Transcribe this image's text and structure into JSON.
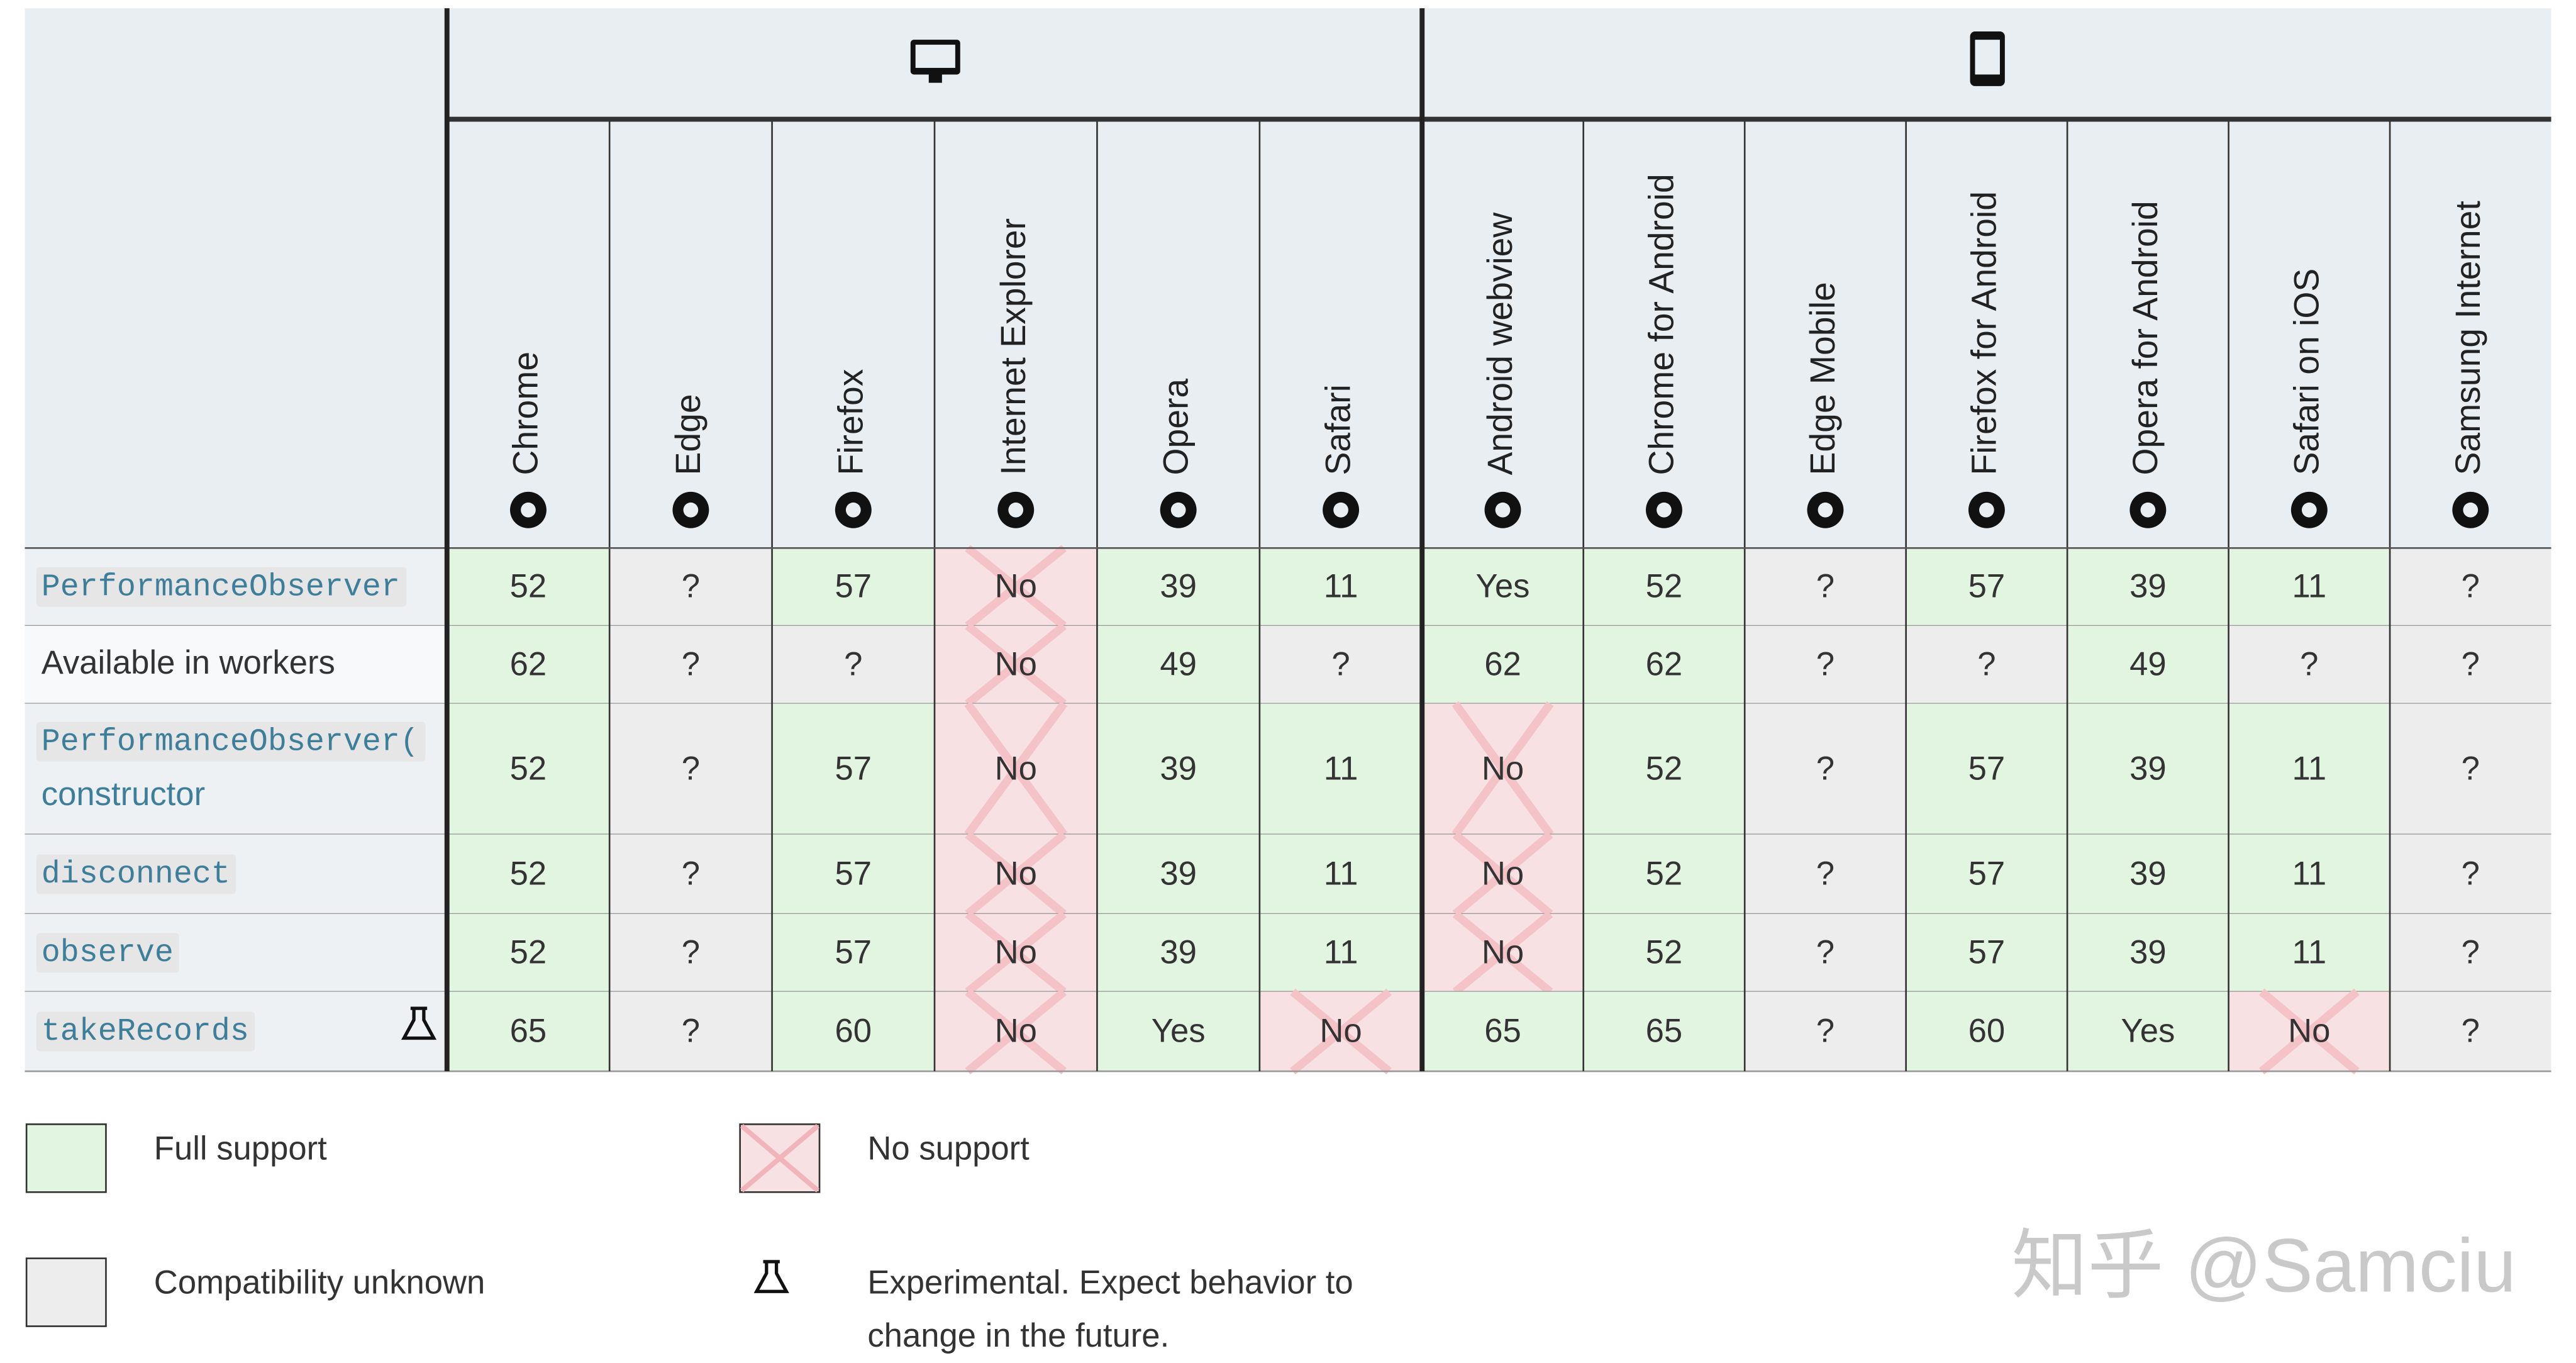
{
  "table": {
    "browsers": [
      "Chrome",
      "Edge",
      "Firefox",
      "Internet Explorer",
      "Opera",
      "Safari",
      "Android webview",
      "Chrome for Android",
      "Edge Mobile",
      "Firefox for Android",
      "Opera for Android",
      "Safari on iOS",
      "Samsung Internet"
    ],
    "rows": [
      {
        "feature": [
          "PerformanceObserver"
        ],
        "style": "code",
        "experimental": false,
        "cells": [
          {
            "text": "52",
            "support": "full"
          },
          {
            "text": "?",
            "support": "unknown"
          },
          {
            "text": "57",
            "support": "full"
          },
          {
            "text": "No",
            "support": "none"
          },
          {
            "text": "39",
            "support": "full"
          },
          {
            "text": "11",
            "support": "full"
          },
          {
            "text": "Yes",
            "support": "full"
          },
          {
            "text": "52",
            "support": "full"
          },
          {
            "text": "?",
            "support": "unknown"
          },
          {
            "text": "57",
            "support": "full"
          },
          {
            "text": "39",
            "support": "full"
          },
          {
            "text": "11",
            "support": "full"
          },
          {
            "text": "?",
            "support": "unknown"
          }
        ]
      },
      {
        "feature": [
          "Available in workers"
        ],
        "style": "plain",
        "experimental": false,
        "cells": [
          {
            "text": "62",
            "support": "full"
          },
          {
            "text": "?",
            "support": "unknown"
          },
          {
            "text": "?",
            "support": "unknown"
          },
          {
            "text": "No",
            "support": "none"
          },
          {
            "text": "49",
            "support": "full"
          },
          {
            "text": "?",
            "support": "unknown"
          },
          {
            "text": "62",
            "support": "full"
          },
          {
            "text": "62",
            "support": "full"
          },
          {
            "text": "?",
            "support": "unknown"
          },
          {
            "text": "?",
            "support": "unknown"
          },
          {
            "text": "49",
            "support": "full"
          },
          {
            "text": "?",
            "support": "unknown"
          },
          {
            "text": "?",
            "support": "unknown"
          }
        ]
      },
      {
        "feature": [
          "PerformanceObserver(",
          "constructor"
        ],
        "style": "code",
        "experimental": false,
        "cells": [
          {
            "text": "52",
            "support": "full"
          },
          {
            "text": "?",
            "support": "unknown"
          },
          {
            "text": "57",
            "support": "full"
          },
          {
            "text": "No",
            "support": "none"
          },
          {
            "text": "39",
            "support": "full"
          },
          {
            "text": "11",
            "support": "full"
          },
          {
            "text": "No",
            "support": "none"
          },
          {
            "text": "52",
            "support": "full"
          },
          {
            "text": "?",
            "support": "unknown"
          },
          {
            "text": "57",
            "support": "full"
          },
          {
            "text": "39",
            "support": "full"
          },
          {
            "text": "11",
            "support": "full"
          },
          {
            "text": "?",
            "support": "unknown"
          }
        ]
      },
      {
        "feature": [
          "disconnect"
        ],
        "style": "code",
        "experimental": false,
        "cells": [
          {
            "text": "52",
            "support": "full"
          },
          {
            "text": "?",
            "support": "unknown"
          },
          {
            "text": "57",
            "support": "full"
          },
          {
            "text": "No",
            "support": "none"
          },
          {
            "text": "39",
            "support": "full"
          },
          {
            "text": "11",
            "support": "full"
          },
          {
            "text": "No",
            "support": "none"
          },
          {
            "text": "52",
            "support": "full"
          },
          {
            "text": "?",
            "support": "unknown"
          },
          {
            "text": "57",
            "support": "full"
          },
          {
            "text": "39",
            "support": "full"
          },
          {
            "text": "11",
            "support": "full"
          },
          {
            "text": "?",
            "support": "unknown"
          }
        ]
      },
      {
        "feature": [
          "observe"
        ],
        "style": "code",
        "experimental": false,
        "cells": [
          {
            "text": "52",
            "support": "full"
          },
          {
            "text": "?",
            "support": "unknown"
          },
          {
            "text": "57",
            "support": "full"
          },
          {
            "text": "No",
            "support": "none"
          },
          {
            "text": "39",
            "support": "full"
          },
          {
            "text": "11",
            "support": "full"
          },
          {
            "text": "No",
            "support": "none"
          },
          {
            "text": "52",
            "support": "full"
          },
          {
            "text": "?",
            "support": "unknown"
          },
          {
            "text": "57",
            "support": "full"
          },
          {
            "text": "39",
            "support": "full"
          },
          {
            "text": "11",
            "support": "full"
          },
          {
            "text": "?",
            "support": "unknown"
          }
        ]
      },
      {
        "feature": [
          "takeRecords"
        ],
        "style": "code",
        "experimental": true,
        "cells": [
          {
            "text": "65",
            "support": "full"
          },
          {
            "text": "?",
            "support": "unknown"
          },
          {
            "text": "60",
            "support": "full"
          },
          {
            "text": "No",
            "support": "none"
          },
          {
            "text": "Yes",
            "support": "full"
          },
          {
            "text": "No",
            "support": "none"
          },
          {
            "text": "65",
            "support": "full"
          },
          {
            "text": "65",
            "support": "full"
          },
          {
            "text": "?",
            "support": "unknown"
          },
          {
            "text": "60",
            "support": "full"
          },
          {
            "text": "Yes",
            "support": "full"
          },
          {
            "text": "No",
            "support": "none"
          },
          {
            "text": "?",
            "support": "unknown"
          }
        ]
      }
    ]
  },
  "legend": {
    "full": "Full support",
    "none": "No support",
    "unknown": "Compatibility unknown",
    "experimental": [
      "Experimental. Expect behavior to",
      "change in the future."
    ]
  },
  "watermark": "知乎 @Samciu"
}
